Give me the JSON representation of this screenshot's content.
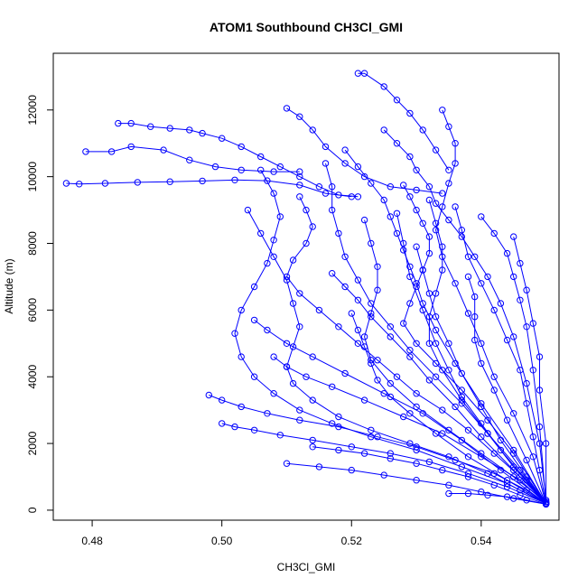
{
  "chart_data": {
    "type": "line",
    "title": "ATOM1 Southbound CH3Cl_GMI",
    "xlabel": "CH3Cl_GMI",
    "ylabel": "Altitude (m)",
    "xlim": [
      0.474,
      0.552
    ],
    "ylim": [
      -300,
      13700
    ],
    "xticks": [
      0.48,
      0.5,
      0.52,
      0.54
    ],
    "xtick_labels": [
      "0.48",
      "0.50",
      "0.52",
      "0.54"
    ],
    "yticks": [
      0,
      2000,
      4000,
      6000,
      8000,
      10000,
      12000
    ],
    "ytick_labels": [
      "0",
      "2000",
      "4000",
      "6000",
      "8000",
      "10000",
      "12000"
    ],
    "grid": false,
    "marker": "open-circle",
    "series_color": "#0000FF",
    "series": [
      {
        "x": [
          0.484,
          0.486,
          0.489,
          0.492,
          0.495,
          0.497,
          0.5,
          0.503,
          0.506,
          0.509,
          0.512,
          0.515,
          0.518,
          0.521
        ],
        "y": [
          11600,
          11600,
          11500,
          11450,
          11400,
          11300,
          11150,
          10900,
          10600,
          10300,
          10000,
          9700,
          9450,
          9400
        ]
      },
      {
        "x": [
          0.476,
          0.478,
          0.482,
          0.487,
          0.492,
          0.497,
          0.502,
          0.507,
          0.512,
          0.516,
          0.52
        ],
        "y": [
          9800,
          9780,
          9800,
          9830,
          9850,
          9870,
          9900,
          9880,
          9750,
          9500,
          9400
        ]
      },
      {
        "x": [
          0.479,
          0.483,
          0.486,
          0.491,
          0.495,
          0.499,
          0.503,
          0.508,
          0.512
        ],
        "y": [
          10750,
          10750,
          10900,
          10800,
          10500,
          10300,
          10200,
          10150,
          10150
        ]
      },
      {
        "x": [
          0.521,
          0.522,
          0.525,
          0.527,
          0.529,
          0.531,
          0.533,
          0.535
        ],
        "y": [
          13100,
          13100,
          12700,
          12300,
          11900,
          11400,
          10800,
          10200
        ]
      },
      {
        "x": [
          0.51,
          0.512,
          0.514,
          0.516,
          0.519,
          0.522,
          0.526,
          0.53,
          0.534
        ],
        "y": [
          12050,
          11800,
          11400,
          10900,
          10400,
          10000,
          9700,
          9600,
          9500
        ]
      },
      {
        "x": [
          0.534,
          0.535,
          0.536,
          0.536,
          0.535,
          0.534,
          0.533,
          0.534,
          0.536,
          0.538,
          0.54,
          0.542,
          0.545,
          0.548,
          0.55
        ],
        "y": [
          12000,
          11500,
          11000,
          10400,
          9800,
          9100,
          8400,
          7600,
          6800,
          5900,
          5000,
          4000,
          2900,
          1600,
          200
        ]
      },
      {
        "x": [
          0.525,
          0.527,
          0.529,
          0.53,
          0.532,
          0.533,
          0.535,
          0.537,
          0.539,
          0.541,
          0.543,
          0.545,
          0.547,
          0.549,
          0.55
        ],
        "y": [
          11400,
          11000,
          10600,
          10200,
          9700,
          9200,
          8700,
          8200,
          7600,
          7000,
          6200,
          5200,
          3800,
          2000,
          300
        ]
      },
      {
        "x": [
          0.528,
          0.529,
          0.53,
          0.531,
          0.532,
          0.532,
          0.531,
          0.53,
          0.529,
          0.528,
          0.53,
          0.533,
          0.537,
          0.541,
          0.545,
          0.55
        ],
        "y": [
          9750,
          9400,
          9000,
          8600,
          8200,
          7700,
          7200,
          6700,
          6200,
          5600,
          5000,
          4400,
          3600,
          2700,
          1700,
          200
        ]
      },
      {
        "x": [
          0.512,
          0.513,
          0.514,
          0.513,
          0.511,
          0.51,
          0.512,
          0.515,
          0.518,
          0.521,
          0.524,
          0.527,
          0.53,
          0.534,
          0.538,
          0.542,
          0.546,
          0.55
        ],
        "y": [
          9400,
          9000,
          8500,
          8000,
          7500,
          7000,
          6500,
          6000,
          5500,
          5000,
          4500,
          4000,
          3500,
          3000,
          2400,
          1700,
          1000,
          250
        ]
      },
      {
        "x": [
          0.506,
          0.508,
          0.509,
          0.508,
          0.507,
          0.505,
          0.503,
          0.502,
          0.503,
          0.505,
          0.508,
          0.512,
          0.517,
          0.523,
          0.53,
          0.537,
          0.544,
          0.55
        ],
        "y": [
          10200,
          9500,
          8800,
          8100,
          7400,
          6700,
          6000,
          5300,
          4600,
          4000,
          3500,
          3000,
          2600,
          2200,
          1800,
          1300,
          800,
          200
        ]
      },
      {
        "x": [
          0.498,
          0.5,
          0.503,
          0.507,
          0.512,
          0.518,
          0.524,
          0.53,
          0.536,
          0.542,
          0.547,
          0.55
        ],
        "y": [
          3450,
          3300,
          3100,
          2900,
          2700,
          2500,
          2200,
          1900,
          1500,
          1100,
          600,
          200
        ]
      },
      {
        "x": [
          0.5,
          0.502,
          0.505,
          0.509,
          0.514,
          0.52,
          0.526,
          0.532,
          0.538,
          0.544,
          0.55
        ],
        "y": [
          2600,
          2500,
          2400,
          2250,
          2100,
          1900,
          1700,
          1450,
          1100,
          700,
          200
        ]
      },
      {
        "x": [
          0.519,
          0.521,
          0.523,
          0.525,
          0.526,
          0.527,
          0.528,
          0.529,
          0.53,
          0.531,
          0.533,
          0.536,
          0.54,
          0.545,
          0.55
        ],
        "y": [
          10800,
          10300,
          9800,
          9300,
          8800,
          8300,
          7800,
          7300,
          6800,
          6200,
          5400,
          4400,
          3200,
          1800,
          200
        ]
      },
      {
        "x": [
          0.516,
          0.517,
          0.517,
          0.518,
          0.519,
          0.521,
          0.523,
          0.526,
          0.529,
          0.533,
          0.537,
          0.541,
          0.545,
          0.55
        ],
        "y": [
          10400,
          9700,
          9000,
          8300,
          7600,
          6900,
          6200,
          5500,
          4800,
          4000,
          3200,
          2300,
          1300,
          200
        ]
      },
      {
        "x": [
          0.536,
          0.537,
          0.538,
          0.54,
          0.542,
          0.544,
          0.546,
          0.547,
          0.548,
          0.549,
          0.55
        ],
        "y": [
          9100,
          8400,
          7600,
          6800,
          6000,
          5100,
          4200,
          3200,
          2200,
          1200,
          200
        ]
      },
      {
        "x": [
          0.545,
          0.546,
          0.547,
          0.548,
          0.549,
          0.549,
          0.55,
          0.55
        ],
        "y": [
          8200,
          7400,
          6600,
          5600,
          4600,
          3600,
          2000,
          200
        ]
      },
      {
        "x": [
          0.54,
          0.542,
          0.544,
          0.545,
          0.546,
          0.547,
          0.548,
          0.549,
          0.55
        ],
        "y": [
          8800,
          8300,
          7700,
          7000,
          6300,
          5500,
          4200,
          2500,
          200
        ]
      },
      {
        "x": [
          0.504,
          0.506,
          0.508,
          0.51,
          0.511,
          0.512,
          0.511,
          0.51,
          0.511,
          0.514,
          0.518,
          0.523,
          0.529,
          0.535,
          0.541,
          0.546,
          0.55
        ],
        "y": [
          9000,
          8300,
          7600,
          6900,
          6200,
          5500,
          4900,
          4300,
          3800,
          3300,
          2800,
          2400,
          2000,
          1600,
          1100,
          600,
          200
        ]
      },
      {
        "x": [
          0.522,
          0.523,
          0.524,
          0.524,
          0.523,
          0.522,
          0.523,
          0.526,
          0.53,
          0.535,
          0.54,
          0.545,
          0.55
        ],
        "y": [
          8700,
          8000,
          7300,
          6600,
          5900,
          5200,
          4500,
          3800,
          3100,
          2400,
          1700,
          1000,
          250
        ]
      },
      {
        "x": [
          0.527,
          0.528,
          0.529,
          0.531,
          0.533,
          0.535,
          0.537,
          0.54,
          0.543,
          0.547,
          0.55
        ],
        "y": [
          8900,
          8000,
          7000,
          6000,
          5000,
          4200,
          3400,
          2600,
          1800,
          900,
          200
        ]
      },
      {
        "x": [
          0.532,
          0.533,
          0.534,
          0.534,
          0.533,
          0.532,
          0.532,
          0.534,
          0.537,
          0.541,
          0.546,
          0.55
        ],
        "y": [
          9300,
          8600,
          7900,
          7200,
          6500,
          5800,
          5000,
          4200,
          3300,
          2300,
          1200,
          200
        ]
      },
      {
        "x": [
          0.508,
          0.51,
          0.513,
          0.517,
          0.522,
          0.528,
          0.534,
          0.54,
          0.546,
          0.55
        ],
        "y": [
          4600,
          4300,
          4000,
          3700,
          3300,
          2800,
          2300,
          1600,
          900,
          200
        ]
      },
      {
        "x": [
          0.505,
          0.507,
          0.51,
          0.514,
          0.519,
          0.525,
          0.531,
          0.537,
          0.543,
          0.55
        ],
        "y": [
          5700,
          5400,
          5000,
          4600,
          4100,
          3500,
          2900,
          2100,
          1200,
          200
        ]
      },
      {
        "x": [
          0.51,
          0.515,
          0.52,
          0.525,
          0.53,
          0.535,
          0.54,
          0.545,
          0.55
        ],
        "y": [
          1400,
          1300,
          1200,
          1050,
          900,
          750,
          550,
          350,
          180
        ]
      },
      {
        "x": [
          0.514,
          0.518,
          0.522,
          0.526,
          0.53,
          0.534,
          0.538,
          0.542,
          0.546,
          0.55
        ],
        "y": [
          1900,
          1800,
          1700,
          1550,
          1400,
          1200,
          1000,
          750,
          450,
          180
        ]
      },
      {
        "x": [
          0.535,
          0.538,
          0.541,
          0.544,
          0.547,
          0.55
        ],
        "y": [
          500,
          500,
          450,
          400,
          300,
          180
        ]
      },
      {
        "x": [
          0.517,
          0.519,
          0.521,
          0.523,
          0.526,
          0.529,
          0.532,
          0.536,
          0.54,
          0.545,
          0.55
        ],
        "y": [
          7100,
          6700,
          6300,
          5800,
          5200,
          4600,
          3900,
          3100,
          2200,
          1200,
          200
        ]
      },
      {
        "x": [
          0.53,
          0.531,
          0.532,
          0.533,
          0.535,
          0.537,
          0.54,
          0.543,
          0.547,
          0.55
        ],
        "y": [
          7900,
          7200,
          6500,
          5800,
          5000,
          4100,
          3100,
          2100,
          1000,
          200
        ]
      },
      {
        "x": [
          0.538,
          0.539,
          0.539,
          0.539,
          0.54,
          0.542,
          0.544,
          0.547,
          0.55
        ],
        "y": [
          7000,
          6400,
          5800,
          5100,
          4400,
          3600,
          2700,
          1500,
          200
        ]
      },
      {
        "x": [
          0.52,
          0.521,
          0.522,
          0.523,
          0.524,
          0.526,
          0.529,
          0.533,
          0.538,
          0.544,
          0.55
        ],
        "y": [
          5900,
          5400,
          4900,
          4400,
          3900,
          3400,
          2900,
          2300,
          1600,
          900,
          200
        ]
      }
    ]
  }
}
